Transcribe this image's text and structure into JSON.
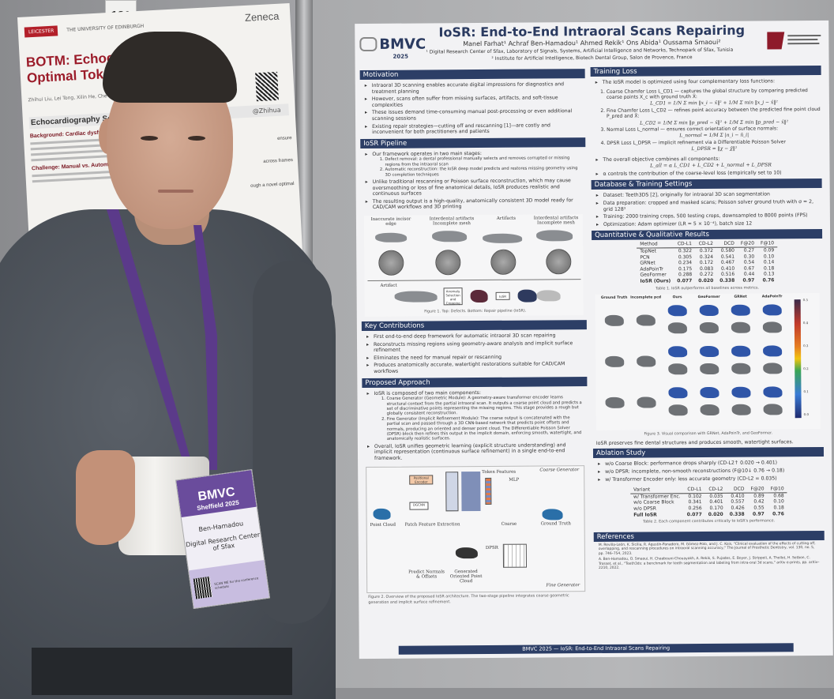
{
  "scene": {
    "board_number": "121",
    "left_poster": {
      "logos": [
        "LEICESTER",
        "THE UNIVERSITY OF EDINBURGH"
      ],
      "sponsor": "Zeneca",
      "title_lines": [
        "BOTM: Echocardiography",
        "Optimal Token Matching"
      ],
      "title_tail": "al",
      "authors": "Zhihui Liu, Lei Tong, Xilin He, Che Liu, Rossella Arcucci ...",
      "handle": "@Zhihua",
      "section": "Echocardiography Segmentation",
      "background": "Background: Cardiac dysfunction, Echocardi...",
      "challenge": "Challenge: Manual vs. Automated Segm...",
      "fragments": [
        "ensure",
        "across frames",
        "ough a novel optimal"
      ]
    },
    "badge": {
      "brand": "BMVC",
      "sub": "Sheffield 2025",
      "name": "Ben-Hamadou",
      "org": "Digital Research Center of Sfax",
      "qr_text": "SCAN ME for the conference schedule"
    },
    "lanyard_text": "BMVC Sheffield 2025",
    "colors": {
      "lanyard": "#5b3a8a",
      "poster_header": "#2c3e66",
      "sweater": "#4a4f55"
    }
  },
  "poster": {
    "title": "IoSR: End-to-End Intraoral Scans Repairing",
    "logo": "BMVC",
    "year": "2025",
    "authors": "Manel Farhat¹   Achraf Ben-Hamadou¹   Ahmed Rekik¹   Ons Abida¹   Oussama Smaoui²",
    "affiliation1": "¹ Digital Research Center of Sfax, Laboratory of Signals, Systems, Artificial Intelligence and Networks, Technopark of Sfax, Tunisia",
    "affiliation2": "² Institute for Artificial Intelligence, Biotech Dental Group, Salon de Provence, France",
    "motivation": {
      "title": "Motivation",
      "bullets": [
        "Intraoral 3D scanning enables accurate digital impressions for diagnostics and treatment planning",
        "However, scans often suffer from missing surfaces, artifacts, and soft-tissue complexities",
        "These issues demand time-consuming manual post-processing or even additional scanning sessions",
        "Existing repair strategies—cutting off and rescanning [1]—are costly and inconvenient for both practitioners and patients"
      ]
    },
    "pipeline": {
      "title": "IoSR Pipeline",
      "intro": "Our framework operates in two main stages:",
      "stages": [
        "Defect removal: a dental professional manually selects and removes corrupted or missing regions from the intraoral scan",
        "Automatic reconstruction: the IoSR deep model predicts and restores missing geometry using 3D completion techniques"
      ],
      "bullets": [
        "Unlike traditional rescanning or Poisson surface reconstruction, which may cause oversmoothing or loss of fine anatomical details, IoSR produces realistic and continuous surfaces",
        "The resulting output is a high-quality, anatomically consistent 3D model ready for CAD/CAM workflows and 3D printing"
      ],
      "figure_labels": [
        "Inaccurate incisor edge",
        "Interdental artifacts Incomplete mesh",
        "Artifacts",
        "Interdental artifacts Incomplete mesh"
      ],
      "artifact_label": "Artifact",
      "step_box": "Anomaly Selection and Cropping",
      "model_box": "IoSR",
      "caption": "Figure 1. Top: Defects. Bottom: Repair pipeline (IoSR)."
    },
    "contributions": {
      "title": "Key Contributions",
      "bullets": [
        "First end-to-end deep framework for automatic intraoral 3D scan repairing",
        "Reconstructs missing regions using geometry-aware analysis and implicit surface refinement",
        "Eliminates the need for manual repair or rescanning",
        "Produces anatomically accurate, watertight restorations suitable for CAD/CAM workflows"
      ]
    },
    "approach": {
      "title": "Proposed Approach",
      "intro": "IoSR is composed of two main components:",
      "items": [
        "Coarse Generator (Geometric Module): A geometry-aware transformer encoder learns structural context from the partial intraoral scan. It outputs a coarse point cloud and predicts a set of discriminative points representing the missing regions. This stage provides a rough but globally consistent reconstruction.",
        "Fine Generator (Implicit Refinement Module): The coarse output is concatenated with the partial scan and passed through a 3D CNN-based network that predicts point offsets and normals, producing an oriented and denser point cloud. The Differentiable Poisson Solver (DPSR) block then refines this output in the implicit domain, enforcing smooth, watertight, and anatomically realistic surfaces."
      ],
      "summary": "Overall, IoSR unifies geometric learning (explicit structure understanding) and implicit representation (continuous surface refinement) in a single end-to-end framework.",
      "diagram_labels": [
        "Coarse Generator",
        "Positional Encoder",
        "Token Features",
        "MLP",
        "DGCNN",
        "Patch Feature Extraction",
        "Point Cloud",
        "Coarse",
        "Ground Truth",
        "DPSR",
        "Predict Normals & Offsets",
        "Generated Oriented Point Cloud",
        "Fine Generator"
      ],
      "caption": "Figure 2. Overview of the proposed IoSR architecture. The two-stage pipeline integrates coarse geometric generation and implicit surface refinement."
    },
    "training_loss": {
      "title": "Training Loss",
      "intro": "The IoSR model is optimized using four complementary loss functions:",
      "items": [
        {
          "text": "Coarse Chamfer Loss L_CD1 — captures the global structure by comparing predicted coarse points X_c with ground truth X̂:",
          "eq": "L_CD1 = 1/N Σ min ‖x_i − x̂‖² + 1/M Σ min ‖x_j − x̂‖²"
        },
        {
          "text": "Fine Chamfer Loss L_CD2 — refines point accuracy between the predicted fine point cloud P_pred and X̂:",
          "eq": "L_CD2 = 1/M Σ min ‖p_pred − x̂‖² + 1/M Σ min ‖p_pred − x̂‖²"
        },
        {
          "text": "Normal Loss L_normal — ensures correct orientation of surface normals:",
          "eq": "L_normal = 1/M Σ |n_i − n̂_i|"
        },
        {
          "text": "DPSR Loss L_DPSR — implicit refinement via a Differentiable Poisson Solver",
          "eq": "L_DPSR = ‖χ − χ̂‖²"
        }
      ],
      "overall": "The overall objective combines all components:",
      "overall_eq": "L_all = α L_CD1 + L_CD2 + L_normal + L_DPSR",
      "alpha_note": "α controls the contribution of the coarse-level loss (empirically set to 10)"
    },
    "database": {
      "title": "Database & Training Settings",
      "bullets": [
        "Dataset: Teeth3DS [2], originally for intraoral 3D scan segmentation",
        "Data preparation: cropped and masked scans; Poisson solver ground truth with σ = 2, grid 128³",
        "Training: 2000 training crops, 500 testing crops, downsampled to 8000 points (FPS)",
        "Optimization: Adam optimizer (LR = 5 × 10⁻⁴), batch size 12"
      ]
    },
    "results": {
      "title": "Quantitative & Qualitative Results",
      "table": {
        "headers": [
          "Method",
          "CD-L1",
          "CD-L2",
          "DCD",
          "F@20",
          "F@10"
        ],
        "rows": [
          [
            "TopNet",
            "0.322",
            "0.372",
            "0.580",
            "0.27",
            "0.09"
          ],
          [
            "PCN",
            "0.305",
            "0.324",
            "0.541",
            "0.30",
            "0.10"
          ],
          [
            "GRNet",
            "0.234",
            "0.172",
            "0.467",
            "0.54",
            "0.14"
          ],
          [
            "AdaPoinTr",
            "0.175",
            "0.083",
            "0.410",
            "0.67",
            "0.18"
          ],
          [
            "GeoFormer",
            "0.288",
            "0.272",
            "0.516",
            "0.44",
            "0.13"
          ],
          [
            "IoSR (Ours)",
            "0.077",
            "0.020",
            "0.338",
            "0.97",
            "0.76"
          ]
        ],
        "caption": "Table 1. IoSR outperforms all baselines across metrics."
      },
      "figure_columns": [
        "Ground Truth",
        "Incomplete pcd",
        "Ours",
        "GeoFormer",
        "GRNet",
        "AdaPoinTr"
      ],
      "colorbar_ticks": [
        "0.5",
        "0.4",
        "0.3",
        "0.2",
        "0.1",
        "0.0"
      ],
      "figure_caption": "Figure 3. Visual comparison with GRNet, AdaPoinTr, and GeoFormer.",
      "note": "IoSR preserves fine dental structures and produces smooth, watertight surfaces."
    },
    "ablation": {
      "title": "Ablation Study",
      "bullets": [
        "w/o Coarse Block: performance drops sharply (CD-L2↑ 0.020 → 0.401)",
        "w/o DPSR: incomplete, non-smooth reconstructions (F@10↓ 0.76 → 0.18)",
        "w/ Transformer Encoder only: less accurate geometry (CD-L2 = 0.035)"
      ],
      "table": {
        "headers": [
          "Variant",
          "CD-L1",
          "CD-L2",
          "DCD",
          "F@20",
          "F@10"
        ],
        "rows": [
          [
            "w/ Transformer Enc.",
            "0.102",
            "0.035",
            "0.410",
            "0.89",
            "0.68"
          ],
          [
            "w/o Coarse Block",
            "0.341",
            "0.401",
            "0.557",
            "0.42",
            "0.10"
          ],
          [
            "w/o DPSR",
            "0.256",
            "0.170",
            "0.426",
            "0.55",
            "0.18"
          ],
          [
            "Full IoSR",
            "0.077",
            "0.020",
            "0.338",
            "0.97",
            "0.76"
          ]
        ],
        "caption": "Table 2. Each component contributes critically to IoSR's performance."
      }
    },
    "references": {
      "title": "References",
      "items": [
        "M. Revilla-León, K. Sicilia, R. Agustín-Panadero, M. Gómez-Polo, and J. C. Kois, \"Clinical evaluation of the effects of cutting off, overlapping, and rescanning procedures on intraoral scanning accuracy,\" The Journal of Prosthetic Dentistry, vol. 130, no. 5, pp. 746–754, 2023.",
        "A. Ben-Hamadou, O. Smaoui, H. Chaabouni-Chouayakh, A. Rekik, S. Pujades, E. Boyer, J. Strippoli, A. Thollot, H. Setbon, C. Trosset, et al., \"Teeth3ds: a benchmark for teeth segmentation and labeling from intra-oral 3d scans,\" arXiv e-prints, pp. arXiv–2210, 2022."
      ]
    },
    "footer": "BMVC 2025 — IoSR: End-to-End Intraoral Scans Repairing"
  }
}
